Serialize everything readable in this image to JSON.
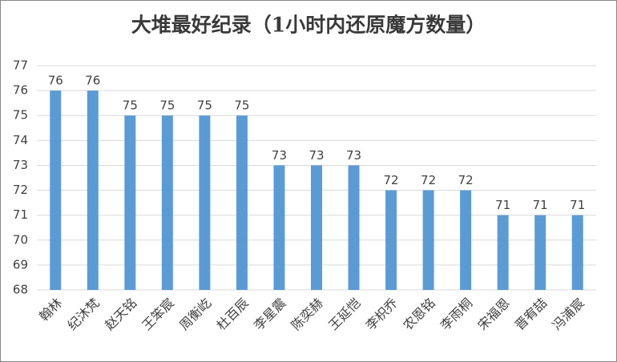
{
  "chart_data": {
    "type": "bar",
    "title": "大堆最好纪录（1小时内还原魔方数量）",
    "categories": [
      "翰林",
      "纪沐梵",
      "赵天铭",
      "王笨宸",
      "周衡屹",
      "杜百辰",
      "李星震",
      "陈奕赫",
      "王延恺",
      "李枳乔",
      "农恩铭",
      "李雨桐",
      "宋福恩",
      "晋宥喆",
      "冯浦宸"
    ],
    "values": [
      76,
      76,
      75,
      75,
      75,
      75,
      73,
      73,
      73,
      72,
      72,
      72,
      71,
      71,
      71
    ],
    "color": "#5b9bd5",
    "ylim": [
      68,
      77
    ],
    "yticks": [
      68,
      69,
      70,
      71,
      72,
      73,
      74,
      75,
      76,
      77
    ],
    "grid": true
  }
}
